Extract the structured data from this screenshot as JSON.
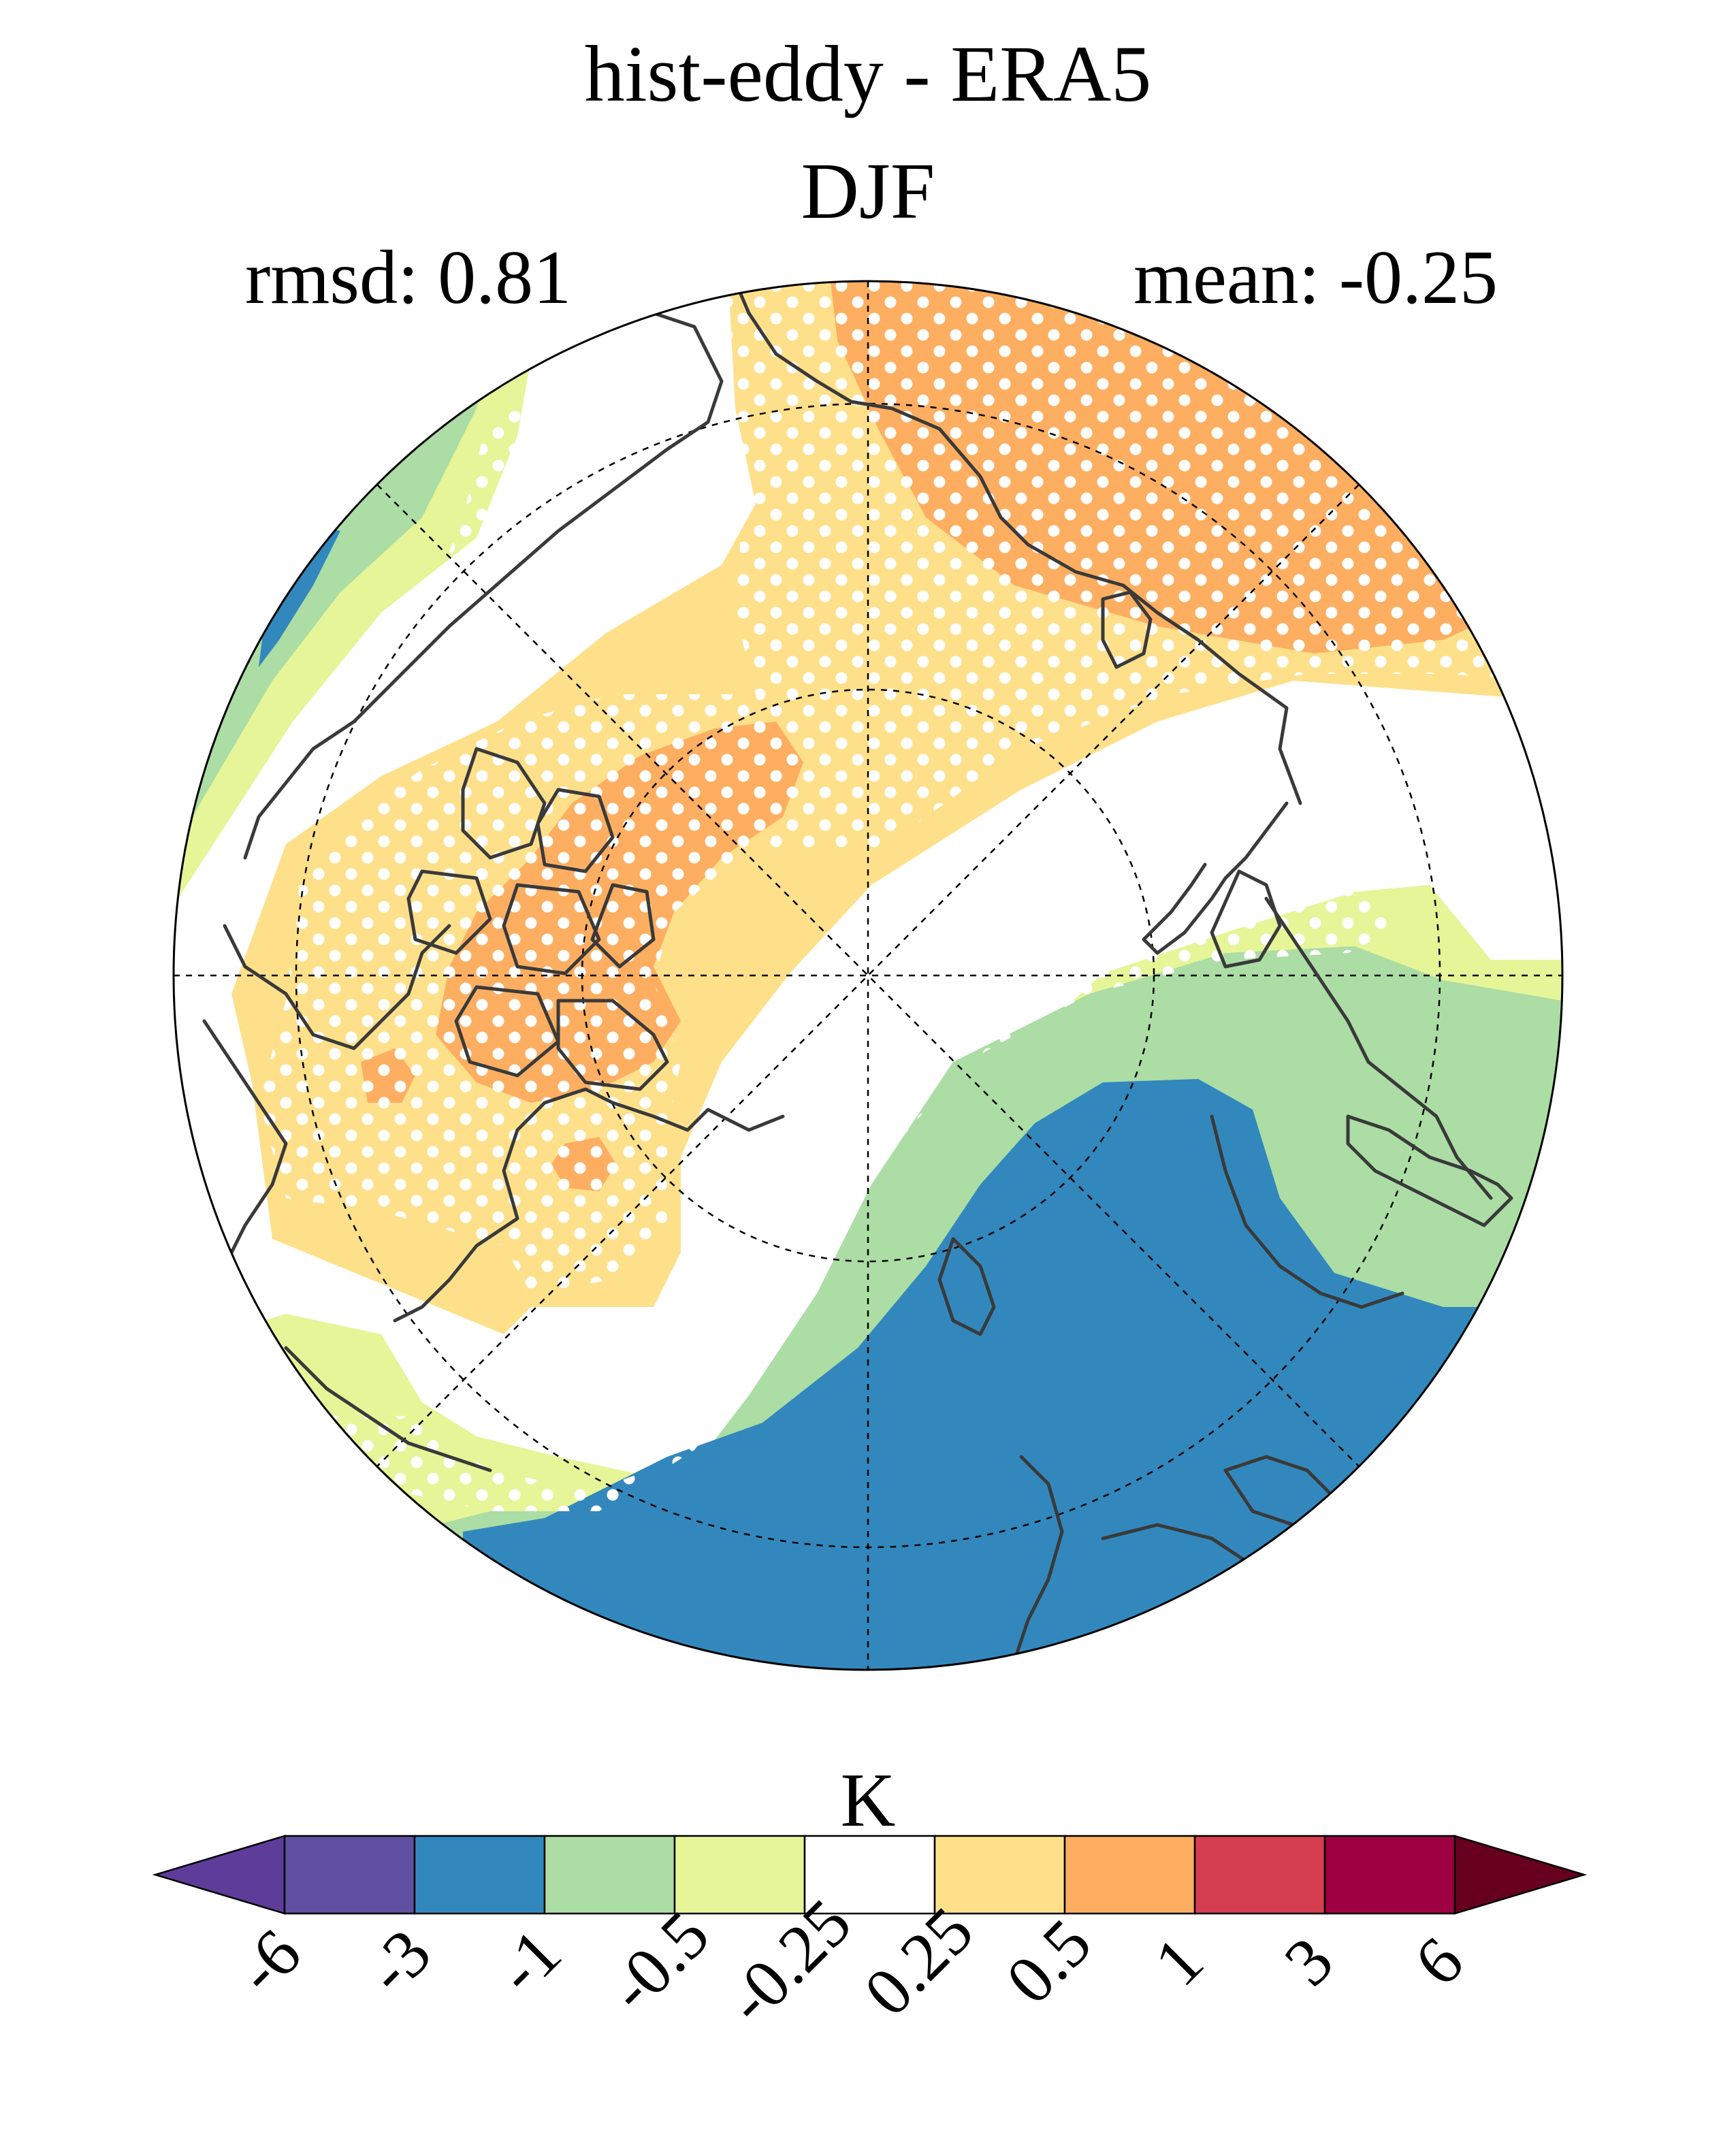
{
  "title": "hist-eddy - ERA5",
  "season": "DJF",
  "rmsd_text": "rmsd: 0.81",
  "mean_text": "mean: -0.25",
  "colorbar": {
    "unit": "K",
    "tick_labels": [
      "-6",
      "-3",
      "-1",
      "-0.5",
      "-0.25",
      "0.25",
      "0.5",
      "1",
      "3",
      "6"
    ],
    "levels": [
      -6,
      -3,
      -1,
      -0.5,
      -0.25,
      0.25,
      0.5,
      1,
      3,
      6
    ],
    "colors": [
      "#5e3c99",
      "#5e4fa2",
      "#3288bd",
      "#abdda4",
      "#e6f598",
      "#ffffff",
      "#fee08b",
      "#fdae61",
      "#d53e4f",
      "#9e0142",
      "#67001f"
    ],
    "extend": "both"
  },
  "map": {
    "projection": "north polar stereographic",
    "stippling": "white dots mark significant differences",
    "colors": {
      "strong_negative": "#3288bd",
      "negative": "#abdda4",
      "weak_negative": "#e6f598",
      "neutral": "#ffffff",
      "weak_positive": "#fee08b",
      "positive": "#fdae61",
      "coastline": "#3a3a3a",
      "gridline": "#000000"
    }
  }
}
